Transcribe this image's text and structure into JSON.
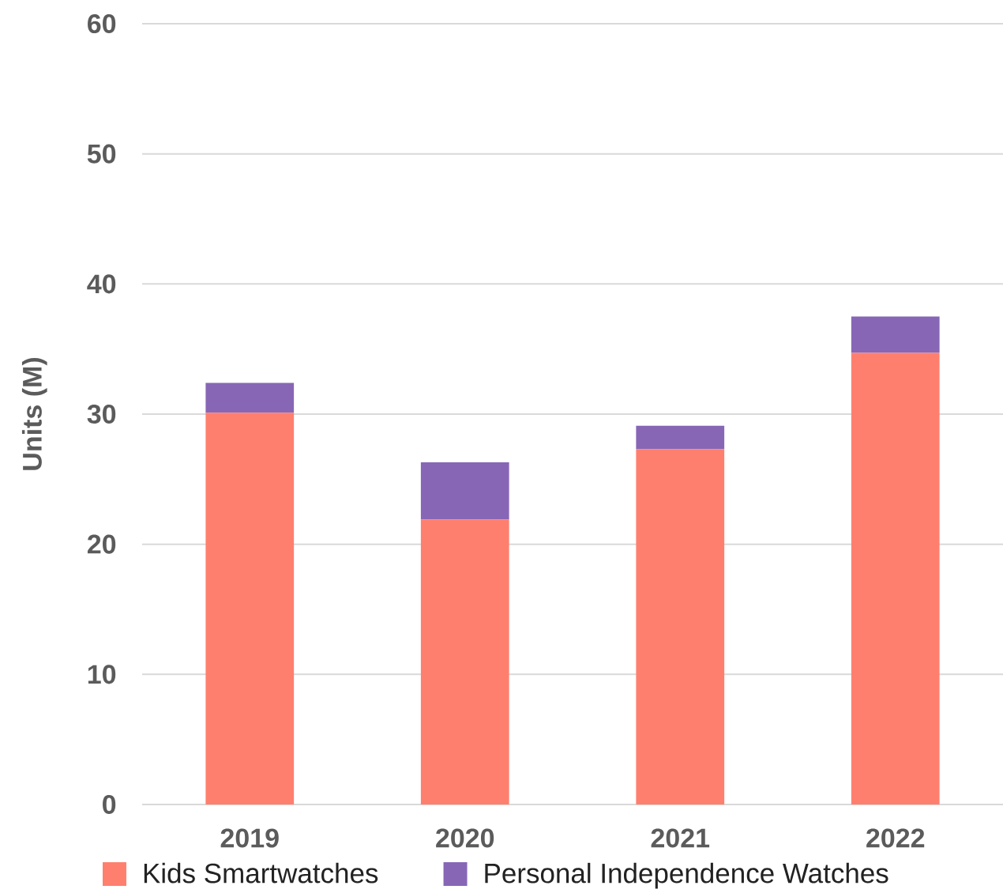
{
  "chart_data": {
    "type": "bar",
    "stacked": true,
    "ylabel": "Units (M)",
    "categories": [
      "2019",
      "2020",
      "2021",
      "2022"
    ],
    "series": [
      {
        "name": "Kids Smartwatches",
        "color": "#ff7f6e",
        "values": [
          30.1,
          21.9,
          27.3,
          34.7
        ]
      },
      {
        "name": "Personal Independence Watches",
        "color": "#8766b6",
        "values": [
          2.3,
          4.4,
          1.8,
          2.8
        ]
      }
    ],
    "ylim": [
      0,
      60
    ],
    "yticks": [
      0,
      10,
      20,
      30,
      40,
      50,
      60
    ],
    "grid": "y",
    "legend": "bottom"
  }
}
